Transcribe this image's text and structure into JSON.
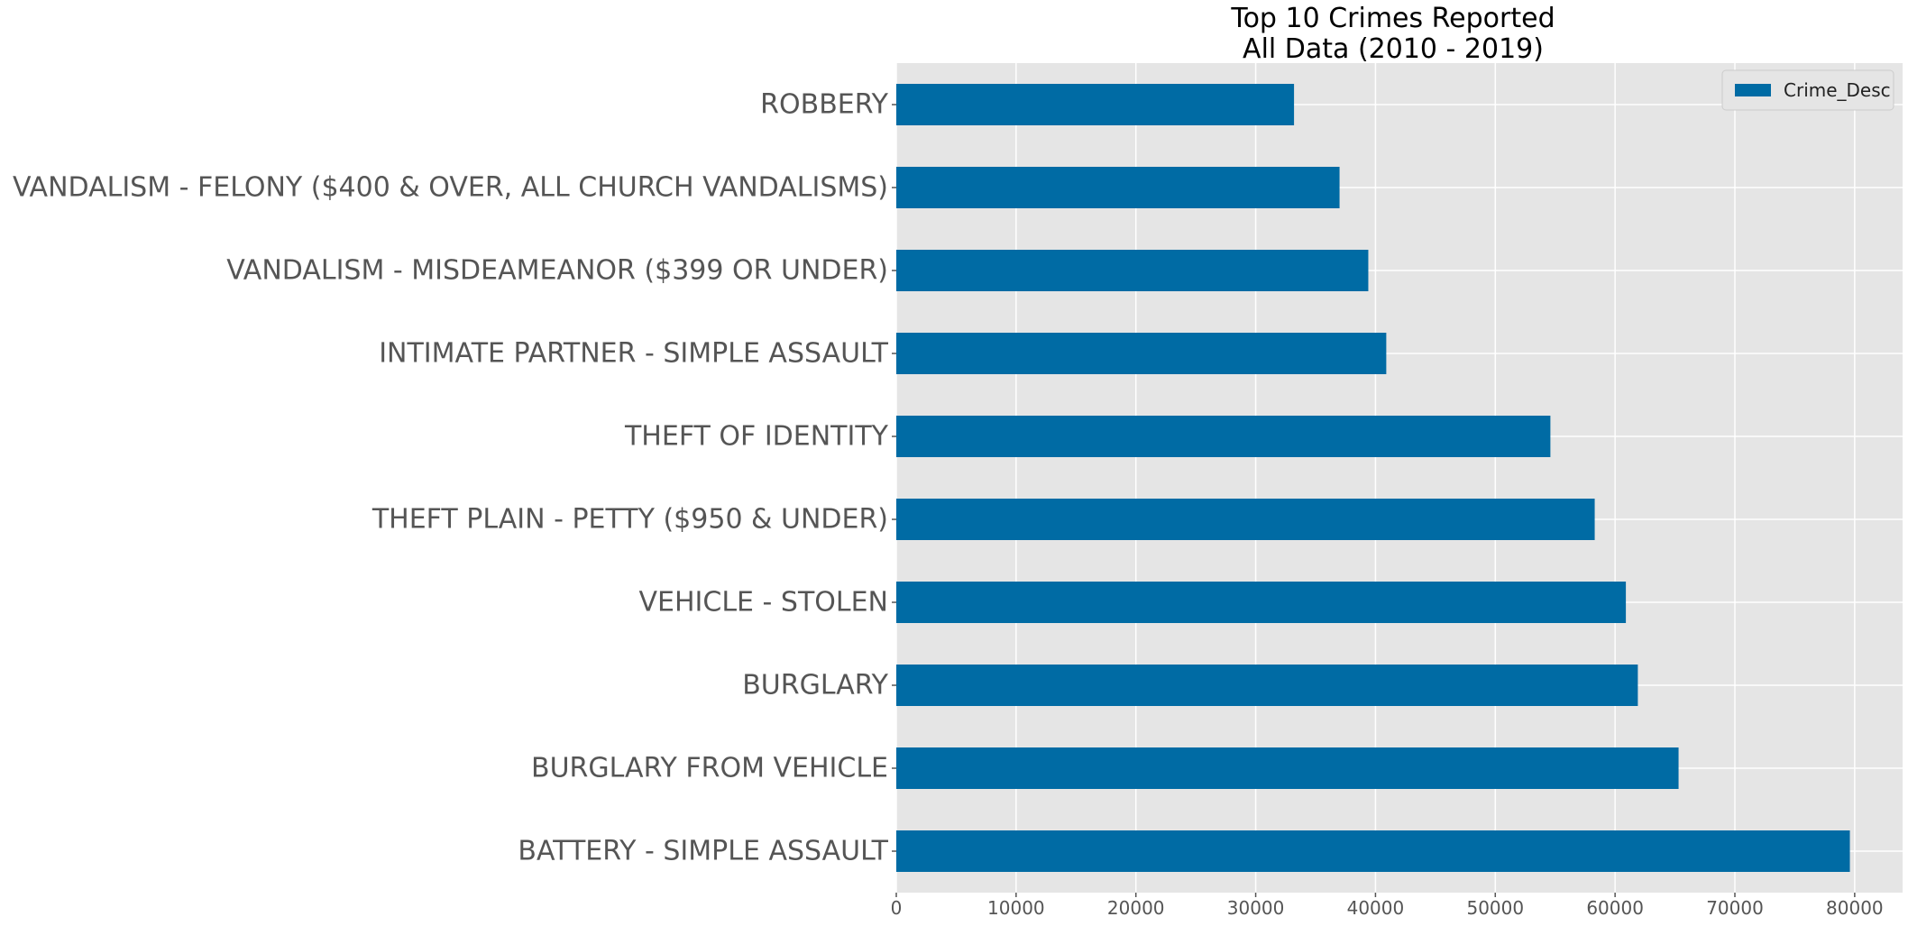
{
  "chart_data": {
    "type": "bar",
    "orientation": "horizontal",
    "title": [
      "Top 10 Crimes Reported",
      "All Data (2010 - 2019)"
    ],
    "categories": [
      "BATTERY - SIMPLE ASSAULT",
      "BURGLARY FROM VEHICLE",
      "BURGLARY",
      "VEHICLE - STOLEN",
      "THEFT PLAIN - PETTY ($950 & UNDER)",
      "THEFT OF IDENTITY",
      "INTIMATE PARTNER - SIMPLE ASSAULT",
      "VANDALISM - MISDEAMEANOR ($399 OR UNDER)",
      "VANDALISM - FELONY ($400 & OVER, ALL CHURCH VANDALISMS)",
      "ROBBERY"
    ],
    "series": [
      {
        "name": "Crime_Desc",
        "color": "#006ba4",
        "values": [
          79600,
          65300,
          61900,
          60900,
          58300,
          54600,
          40900,
          39400,
          37000,
          33200
        ]
      }
    ],
    "xlim": [
      0,
      84000
    ],
    "xticks": [
      0,
      10000,
      20000,
      30000,
      40000,
      50000,
      60000,
      70000,
      80000
    ],
    "xtick_labels": [
      "0",
      "10000",
      "20000",
      "30000",
      "40000",
      "50000",
      "60000",
      "70000",
      "80000"
    ],
    "grid": true,
    "legend": "top-right",
    "background_color": "#e5e5e5",
    "grid_color": "#ffffff"
  }
}
